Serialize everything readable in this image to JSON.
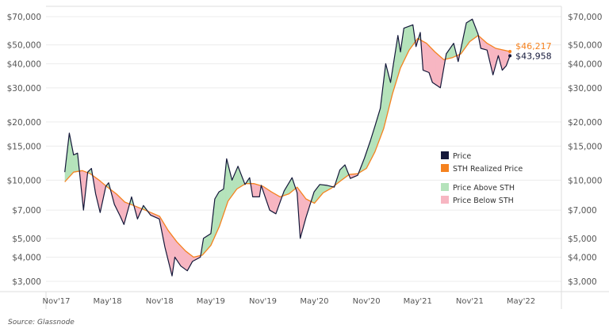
{
  "chart_data": {
    "type": "area",
    "title": "",
    "xlabel": "",
    "ylabel": "",
    "y_scale": "log",
    "ylim": [
      2800,
      80000
    ],
    "y_ticks": [
      3000,
      4000,
      5000,
      7000,
      10000,
      15000,
      20000,
      30000,
      40000,
      50000,
      70000
    ],
    "y_tick_labels": [
      "$3,000",
      "$4,000",
      "$5,000",
      "$7,000",
      "$10,000",
      "$15,000",
      "$20,000",
      "$30,000",
      "$40,000",
      "$50,000",
      "$70,000"
    ],
    "y_axis_sides": [
      "left",
      "right"
    ],
    "x_ticks": [
      "2017-11-01",
      "2018-05-01",
      "2018-11-01",
      "2019-05-01",
      "2019-11-01",
      "2020-05-01",
      "2020-11-01",
      "2021-05-01",
      "2021-11-01",
      "2022-05-01"
    ],
    "x_tick_labels": [
      "Nov'17",
      "May'18",
      "Nov'18",
      "May'19",
      "Nov'19",
      "May'20",
      "Nov'20",
      "May'21",
      "Nov'21",
      "May'22"
    ],
    "grid": true,
    "legend_position": "right",
    "legend": [
      {
        "label": "Price",
        "color": "#14183a"
      },
      {
        "label": "STH Realized Price",
        "color": "#f5821f"
      },
      {
        "label": "Price Above STH",
        "color": "#b5e3bb"
      },
      {
        "label": "Price Below STH",
        "color": "#f7b6c2"
      }
    ],
    "series": [
      {
        "name": "Price",
        "color": "#14183a",
        "points": [
          [
            "2017-12-01",
            11000
          ],
          [
            "2017-12-17",
            17500
          ],
          [
            "2018-01-01",
            13500
          ],
          [
            "2018-01-15",
            13800
          ],
          [
            "2018-02-05",
            7000
          ],
          [
            "2018-02-20",
            11000
          ],
          [
            "2018-03-05",
            11500
          ],
          [
            "2018-03-20",
            8500
          ],
          [
            "2018-04-05",
            6800
          ],
          [
            "2018-04-25",
            9300
          ],
          [
            "2018-05-05",
            9700
          ],
          [
            "2018-05-25",
            7500
          ],
          [
            "2018-06-15",
            6500
          ],
          [
            "2018-06-28",
            5900
          ],
          [
            "2018-07-25",
            8200
          ],
          [
            "2018-08-15",
            6300
          ],
          [
            "2018-09-05",
            7400
          ],
          [
            "2018-09-30",
            6600
          ],
          [
            "2018-10-31",
            6300
          ],
          [
            "2018-11-20",
            4500
          ],
          [
            "2018-12-15",
            3200
          ],
          [
            "2018-12-25",
            4000
          ],
          [
            "2019-01-15",
            3600
          ],
          [
            "2019-02-07",
            3400
          ],
          [
            "2019-02-25",
            3800
          ],
          [
            "2019-03-25",
            4000
          ],
          [
            "2019-04-05",
            5000
          ],
          [
            "2019-05-01",
            5300
          ],
          [
            "2019-05-15",
            8000
          ],
          [
            "2019-05-30",
            8700
          ],
          [
            "2019-06-15",
            9000
          ],
          [
            "2019-06-26",
            12900
          ],
          [
            "2019-07-15",
            10000
          ],
          [
            "2019-08-05",
            11800
          ],
          [
            "2019-08-30",
            9500
          ],
          [
            "2019-09-15",
            10300
          ],
          [
            "2019-09-26",
            8200
          ],
          [
            "2019-10-20",
            8200
          ],
          [
            "2019-10-26",
            9400
          ],
          [
            "2019-11-25",
            7000
          ],
          [
            "2019-12-17",
            6700
          ],
          [
            "2020-01-15",
            8800
          ],
          [
            "2020-02-12",
            10300
          ],
          [
            "2020-03-01",
            8600
          ],
          [
            "2020-03-12",
            5000
          ],
          [
            "2020-04-01",
            6400
          ],
          [
            "2020-04-30",
            8700
          ],
          [
            "2020-05-20",
            9500
          ],
          [
            "2020-06-15",
            9400
          ],
          [
            "2020-07-10",
            9200
          ],
          [
            "2020-07-30",
            11300
          ],
          [
            "2020-08-17",
            12000
          ],
          [
            "2020-09-05",
            10200
          ],
          [
            "2020-10-01",
            10600
          ],
          [
            "2020-10-25",
            13000
          ],
          [
            "2020-11-15",
            16000
          ],
          [
            "2020-12-01",
            19000
          ],
          [
            "2020-12-20",
            23500
          ],
          [
            "2021-01-08",
            40000
          ],
          [
            "2021-01-25",
            32000
          ],
          [
            "2021-02-20",
            56000
          ],
          [
            "2021-03-01",
            46000
          ],
          [
            "2021-03-13",
            61000
          ],
          [
            "2021-04-14",
            63500
          ],
          [
            "2021-04-25",
            49000
          ],
          [
            "2021-05-10",
            58000
          ],
          [
            "2021-05-20",
            37000
          ],
          [
            "2021-06-10",
            36000
          ],
          [
            "2021-06-22",
            32000
          ],
          [
            "2021-07-20",
            30000
          ],
          [
            "2021-08-10",
            45000
          ],
          [
            "2021-09-05",
            51000
          ],
          [
            "2021-09-21",
            41000
          ],
          [
            "2021-10-20",
            65000
          ],
          [
            "2021-11-10",
            68000
          ],
          [
            "2021-11-30",
            57000
          ],
          [
            "2021-12-10",
            48000
          ],
          [
            "2022-01-01",
            47000
          ],
          [
            "2022-01-22",
            35000
          ],
          [
            "2022-02-10",
            44000
          ],
          [
            "2022-02-24",
            37000
          ],
          [
            "2022-03-10",
            39000
          ],
          [
            "2022-03-23",
            43958
          ]
        ]
      },
      {
        "name": "STH Realized Price",
        "color": "#f5821f",
        "points": [
          [
            "2017-12-01",
            9800
          ],
          [
            "2018-01-01",
            11000
          ],
          [
            "2018-02-01",
            11200
          ],
          [
            "2018-03-01",
            10800
          ],
          [
            "2018-04-01",
            10000
          ],
          [
            "2018-05-01",
            9200
          ],
          [
            "2018-06-01",
            8500
          ],
          [
            "2018-07-01",
            7700
          ],
          [
            "2018-08-01",
            7400
          ],
          [
            "2018-09-01",
            7100
          ],
          [
            "2018-10-01",
            6800
          ],
          [
            "2018-11-01",
            6500
          ],
          [
            "2018-12-01",
            5500
          ],
          [
            "2019-01-01",
            4800
          ],
          [
            "2019-02-01",
            4300
          ],
          [
            "2019-03-01",
            4000
          ],
          [
            "2019-04-01",
            4100
          ],
          [
            "2019-05-01",
            4600
          ],
          [
            "2019-06-01",
            5800
          ],
          [
            "2019-07-01",
            7800
          ],
          [
            "2019-08-01",
            9000
          ],
          [
            "2019-09-01",
            9600
          ],
          [
            "2019-10-01",
            9600
          ],
          [
            "2019-11-01",
            9300
          ],
          [
            "2019-12-01",
            8700
          ],
          [
            "2020-01-01",
            8200
          ],
          [
            "2020-02-01",
            8500
          ],
          [
            "2020-03-01",
            9200
          ],
          [
            "2020-04-01",
            8000
          ],
          [
            "2020-05-01",
            7600
          ],
          [
            "2020-06-01",
            8600
          ],
          [
            "2020-07-01",
            9100
          ],
          [
            "2020-08-01",
            9900
          ],
          [
            "2020-09-01",
            10700
          ],
          [
            "2020-10-01",
            10800
          ],
          [
            "2020-11-01",
            11500
          ],
          [
            "2020-12-01",
            14000
          ],
          [
            "2021-01-01",
            18500
          ],
          [
            "2021-02-01",
            28000
          ],
          [
            "2021-03-01",
            38000
          ],
          [
            "2021-04-01",
            47000
          ],
          [
            "2021-05-01",
            54000
          ],
          [
            "2021-06-01",
            51000
          ],
          [
            "2021-07-01",
            46000
          ],
          [
            "2021-08-01",
            42000
          ],
          [
            "2021-09-01",
            43000
          ],
          [
            "2021-10-01",
            45000
          ],
          [
            "2021-11-01",
            52000
          ],
          [
            "2021-12-01",
            56000
          ],
          [
            "2022-01-01",
            51000
          ],
          [
            "2022-02-01",
            48000
          ],
          [
            "2022-03-23",
            46217
          ]
        ]
      }
    ],
    "annotations": [
      {
        "label": "$46,217",
        "series": "STH Realized Price",
        "color": "#f5821f"
      },
      {
        "label": "$43,958",
        "series": "Price",
        "color": "#14183a"
      }
    ]
  },
  "source": "Source: Glassnode"
}
